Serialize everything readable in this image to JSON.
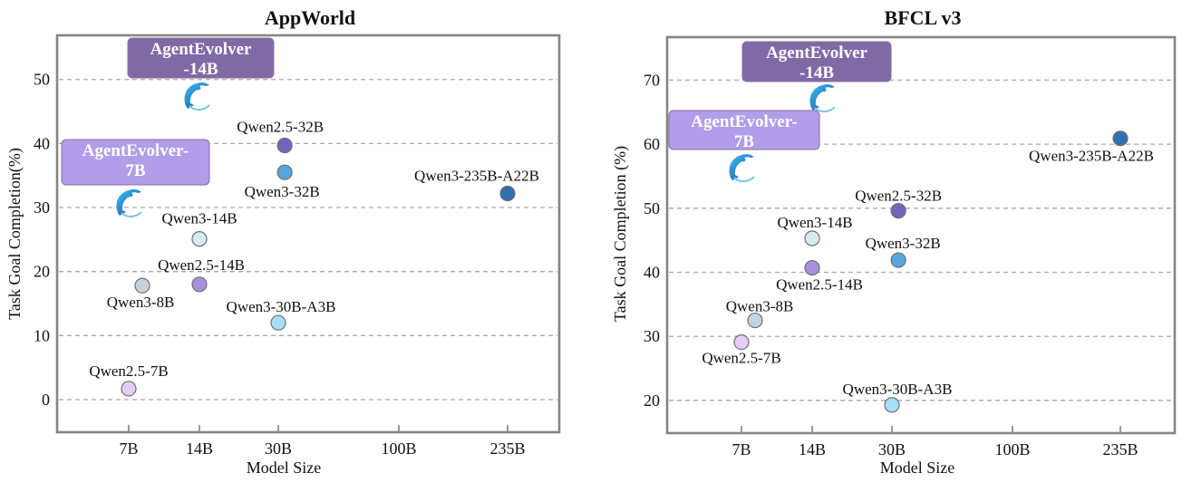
{
  "chart_data": [
    {
      "type": "scatter",
      "title": "AppWorld",
      "xlabel": "Model Size",
      "ylabel": "Task Goal Completion(%)",
      "x_scale": "log",
      "x_ticks": [
        7,
        14,
        30,
        100,
        235
      ],
      "x_tick_labels": [
        "7B",
        "14B",
        "30B",
        "100B",
        "235B"
      ],
      "y_ticks": [
        0,
        10,
        20,
        30,
        40,
        50
      ],
      "ylim": [
        -5.1,
        56.9
      ],
      "grid": "horizontal dashed",
      "points": [
        {
          "label": "Qwen2.5-7B",
          "x": 7,
          "y": 1.7,
          "color": "#e3cdf6"
        },
        {
          "label": "Qwen3-8B",
          "x": 8,
          "y": 17.8,
          "color": "#c6d2dc"
        },
        {
          "label": "Qwen3-14B",
          "x": 14,
          "y": 25.1,
          "color": "#d8eaf1"
        },
        {
          "label": "Qwen2.5-14B",
          "x": 14,
          "y": 18.0,
          "color": "#a98fe0"
        },
        {
          "label": "Qwen3-30B-A3B",
          "x": 30,
          "y": 12.0,
          "color": "#a7dffa"
        },
        {
          "label": "Qwen2.5-32B",
          "x": 32,
          "y": 39.7,
          "color": "#7762be"
        },
        {
          "label": "Qwen3-32B",
          "x": 32,
          "y": 35.5,
          "color": "#55a7df"
        },
        {
          "label": "Qwen3-235B-A22B",
          "x": 235,
          "y": 32.2,
          "color": "#2f6fae"
        }
      ],
      "highlights": [
        {
          "label": "AgentEvolver-14B",
          "lines": [
            "AgentEvolver",
            "-14B"
          ],
          "x": 14,
          "y": 47.7,
          "color": "#806aa6",
          "icon": "dolphin-icon"
        },
        {
          "label": "AgentEvolver-7B",
          "lines": [
            "AgentEvolver-",
            "7B"
          ],
          "x": 7,
          "y": 31.0,
          "color": "#b19de9",
          "icon": "dolphin-icon"
        }
      ]
    },
    {
      "type": "scatter",
      "title": "BFCL v3",
      "xlabel": "Model Size",
      "ylabel": "Task Goal Completion (%)",
      "x_scale": "log",
      "x_ticks": [
        7,
        14,
        30,
        100,
        235
      ],
      "x_tick_labels": [
        "7B",
        "14B",
        "30B",
        "100B",
        "235B"
      ],
      "y_ticks": [
        20,
        30,
        40,
        50,
        60,
        70
      ],
      "ylim": [
        14.9,
        76.7
      ],
      "grid": "horizontal dashed",
      "points": [
        {
          "label": "Qwen2.5-7B",
          "x": 7,
          "y": 29.1,
          "color": "#e3cdf6"
        },
        {
          "label": "Qwen3-8B",
          "x": 8,
          "y": 32.5,
          "color": "#c6d2dc"
        },
        {
          "label": "Qwen3-14B",
          "x": 14,
          "y": 45.3,
          "color": "#d8eaf1"
        },
        {
          "label": "Qwen2.5-14B",
          "x": 14,
          "y": 40.7,
          "color": "#a98fe0"
        },
        {
          "label": "Qwen3-30B-A3B",
          "x": 30,
          "y": 19.3,
          "color": "#a7dffa"
        },
        {
          "label": "Qwen2.5-32B",
          "x": 32,
          "y": 49.6,
          "color": "#7762be"
        },
        {
          "label": "Qwen3-32B",
          "x": 32,
          "y": 41.9,
          "color": "#55a7df"
        },
        {
          "label": "Qwen3-235B-A22B",
          "x": 235,
          "y": 60.9,
          "color": "#2f6fae"
        }
      ],
      "highlights": [
        {
          "label": "AgentEvolver-14B",
          "lines": [
            "AgentEvolver",
            "-14B"
          ],
          "x": 14,
          "y": 67.5,
          "color": "#806aa6",
          "icon": "dolphin-icon"
        },
        {
          "label": "AgentEvolver-7B",
          "lines": [
            "AgentEvolver-",
            "7B"
          ],
          "x": 7,
          "y": 56.6,
          "color": "#b19de9",
          "icon": "dolphin-icon"
        }
      ]
    }
  ]
}
